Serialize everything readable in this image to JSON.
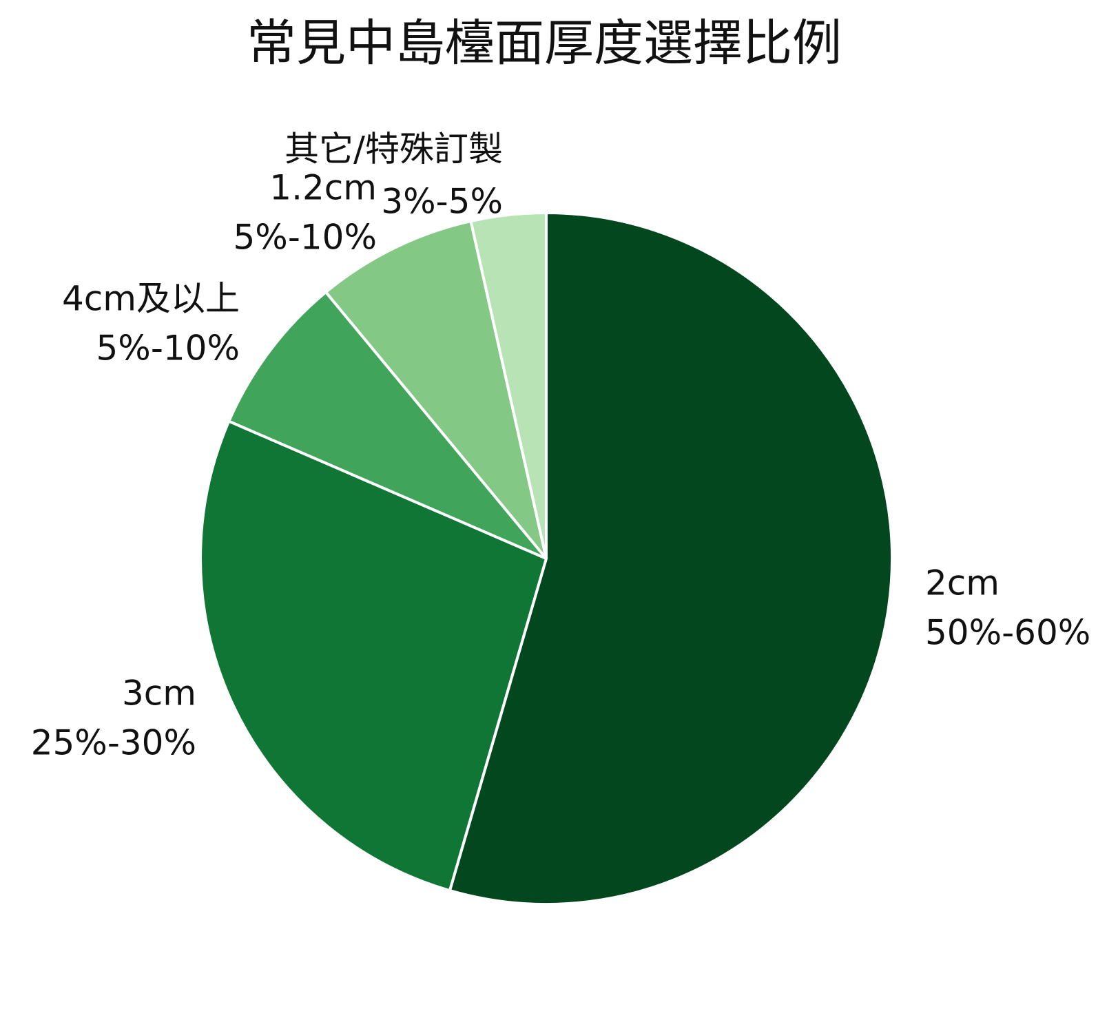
{
  "chart_data": {
    "type": "pie",
    "title": "常見中島檯面厚度選擇比例",
    "categories": [
      "2cm",
      "3cm",
      "4cm及以上",
      "1.2cm",
      "其它/特殊訂製"
    ],
    "values": [
      54.5,
      27,
      7.5,
      7.5,
      3.5
    ],
    "ranges": [
      "50%-60%",
      "25%-30%",
      "5%-10%",
      "5%-10%",
      "3%-5%"
    ],
    "colors": [
      "#03471f",
      "#107636",
      "#40a55a",
      "#83c884",
      "#b8e3b5"
    ]
  }
}
